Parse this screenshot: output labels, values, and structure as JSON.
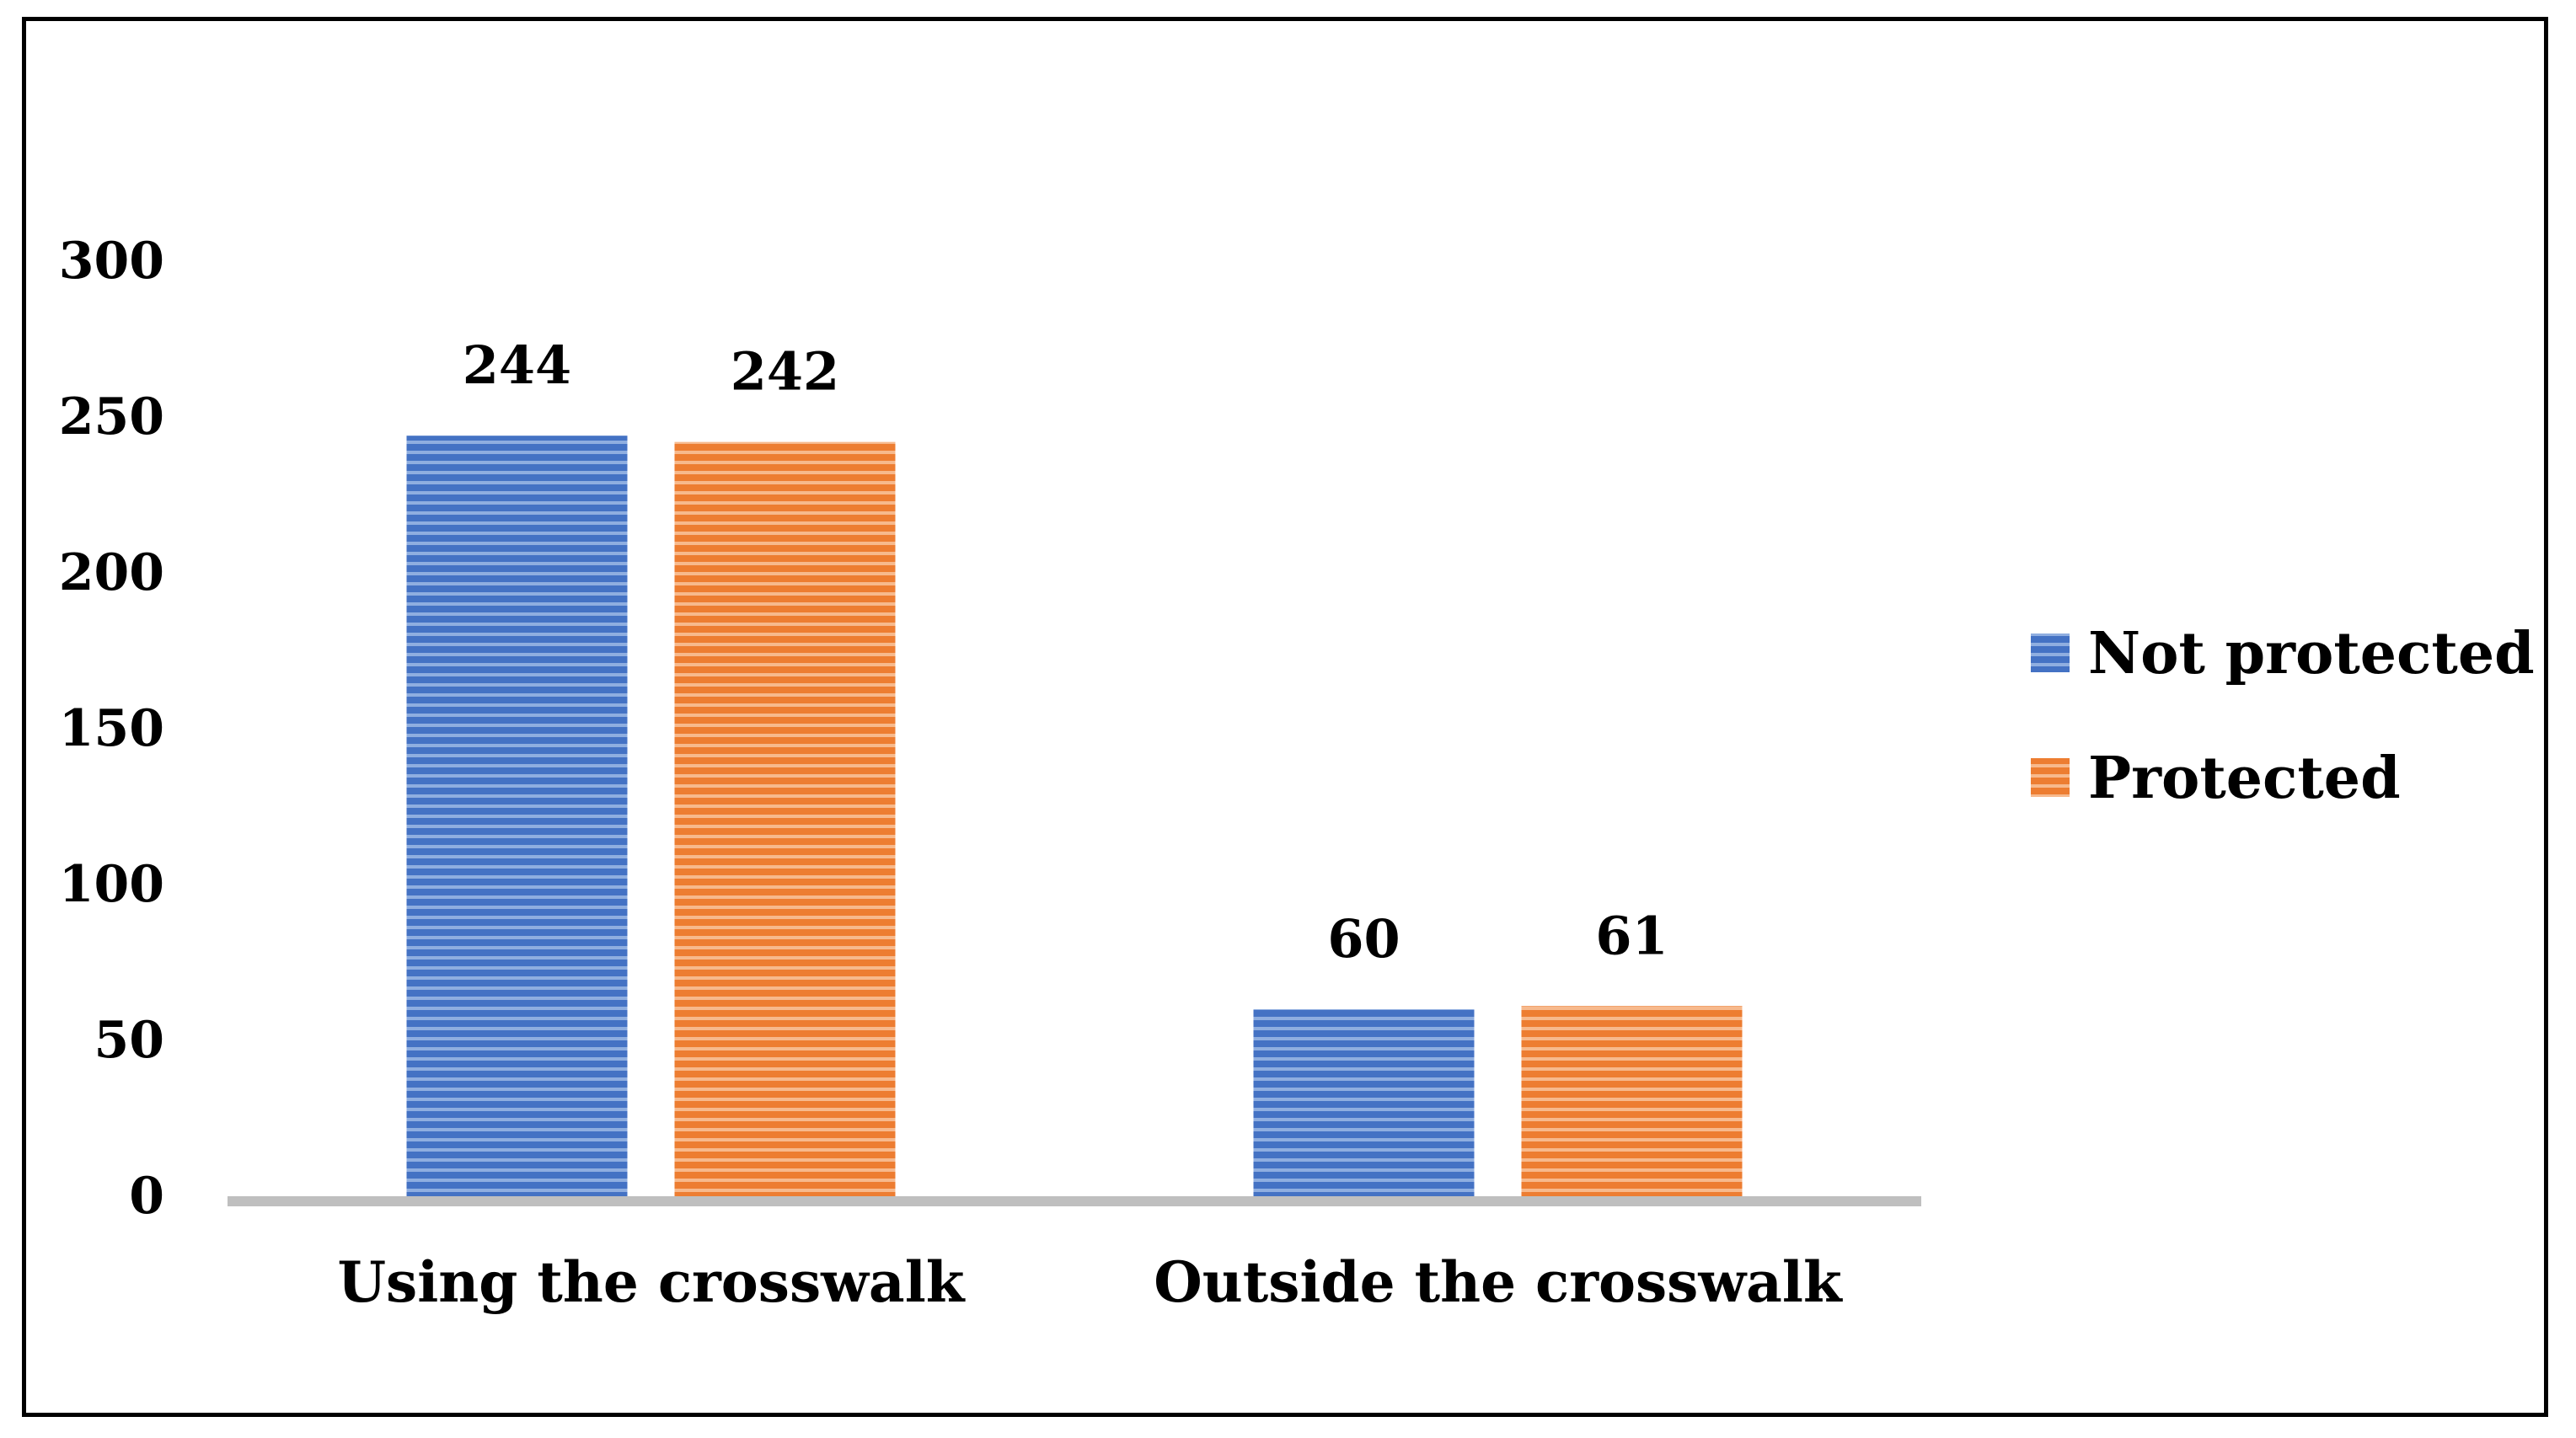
{
  "chart_data": {
    "type": "bar",
    "categories": [
      "Using the crosswalk",
      "Outside the crosswalk"
    ],
    "series": [
      {
        "name": "Not protected",
        "values": [
          244,
          60
        ],
        "color": "#4472C4"
      },
      {
        "name": "Protected",
        "values": [
          242,
          61
        ],
        "color": "#ED7D31"
      }
    ],
    "ylim": [
      0,
      300
    ],
    "yticks": [
      0,
      50,
      100,
      150,
      200,
      250,
      300
    ],
    "data_labels": true,
    "legend_position": "right",
    "grid": false,
    "fill_pattern": "horizontal-stripes"
  }
}
